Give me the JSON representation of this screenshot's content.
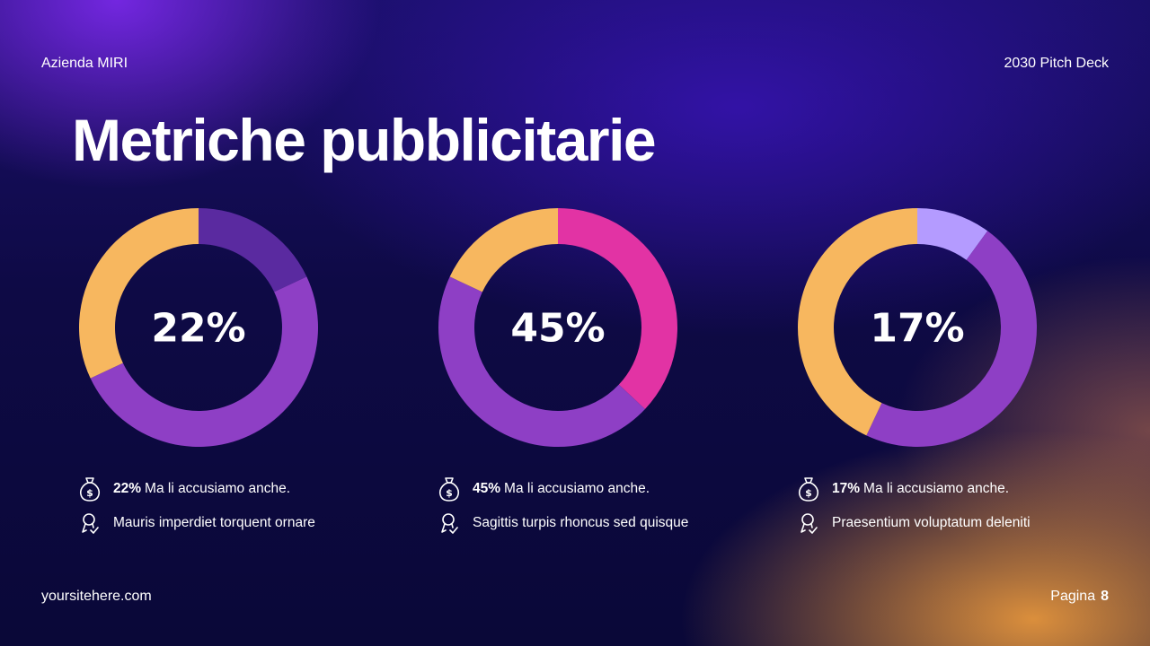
{
  "header": {
    "company": "Azienda MIRI",
    "deck": "2030 Pitch Deck"
  },
  "title": "Metriche pubblicitarie",
  "footer": {
    "site": "yoursitehere.com",
    "page_label": "Pagina",
    "page_number": "8"
  },
  "colors": {
    "orange": "#f7b75f",
    "purple": "#8e3fc5",
    "dark_purple": "#5a2aa0",
    "magenta": "#e233a4",
    "lavender": "#b49bff"
  },
  "chart_data": [
    {
      "type": "pie",
      "style": "donut",
      "center_label": "22%",
      "slices": [
        {
          "value": 18,
          "color": "#5a2aa0"
        },
        {
          "value": 50,
          "color": "#8e3fc5"
        },
        {
          "value": 32,
          "color": "#f7b75f"
        }
      ],
      "caption": {
        "value": "22%",
        "text": "Ma li accusiamo anche.",
        "subtext": "Mauris imperdiet torquent ornare"
      }
    },
    {
      "type": "pie",
      "style": "donut",
      "center_label": "45%",
      "slices": [
        {
          "value": 37,
          "color": "#e233a4"
        },
        {
          "value": 45,
          "color": "#8e3fc5"
        },
        {
          "value": 18,
          "color": "#f7b75f"
        }
      ],
      "caption": {
        "value": "45%",
        "text": "Ma li accusiamo anche.",
        "subtext": "Sagittis turpis rhoncus sed quisque"
      }
    },
    {
      "type": "pie",
      "style": "donut",
      "center_label": "17%",
      "slices": [
        {
          "value": 10,
          "color": "#b49bff"
        },
        {
          "value": 47,
          "color": "#8e3fc5"
        },
        {
          "value": 43,
          "color": "#f7b75f"
        }
      ],
      "caption": {
        "value": "17%",
        "text": "Ma li accusiamo anche.",
        "subtext": "Praesentium voluptatum deleniti"
      }
    }
  ],
  "icons": {
    "money": "money-bag-icon",
    "award": "award-icon"
  }
}
